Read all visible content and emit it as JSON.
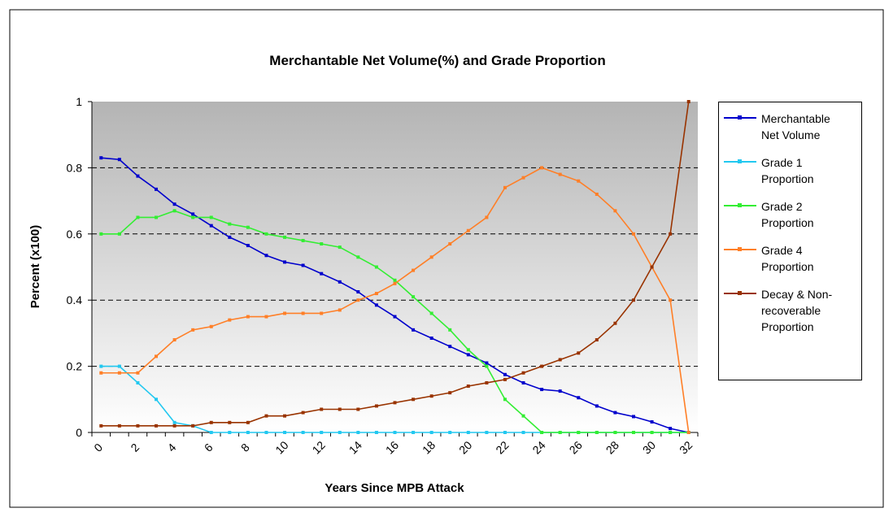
{
  "chart_data": {
    "type": "line",
    "title": "Merchantable Net Volume(%) and Grade Proportion",
    "x_label": "Years Since MPB Attack",
    "y_label": "Percent (x100)",
    "categories": [
      "0",
      null,
      "2",
      null,
      "4",
      null,
      "6",
      null,
      "8",
      null,
      "10",
      null,
      "12",
      null,
      "14",
      null,
      "16",
      null,
      "18",
      null,
      "20",
      null,
      "22",
      null,
      "24",
      null,
      "26",
      null,
      "28",
      null,
      "30",
      null,
      "32"
    ],
    "ylim": [
      0,
      1
    ],
    "yticks": [
      0,
      0.2,
      0.4,
      0.6,
      0.8,
      1
    ],
    "grid": true,
    "legend": "right",
    "series": [
      {
        "name": "Merchantable Net Volume",
        "color": "#0000cc",
        "values": [
          0.83,
          0.825,
          0.775,
          0.735,
          0.69,
          0.66,
          0.625,
          0.59,
          0.565,
          0.535,
          0.515,
          0.505,
          0.48,
          0.455,
          0.425,
          0.385,
          0.35,
          0.31,
          0.285,
          0.26,
          0.235,
          0.21,
          0.175,
          0.15,
          0.13,
          0.125,
          0.105,
          0.08,
          0.06,
          0.048,
          0.032,
          0.012,
          0
        ]
      },
      {
        "name": "Grade 1 Proportion",
        "color": "#22c8f0",
        "values": [
          0.2,
          0.2,
          0.15,
          0.1,
          0.03,
          0.02,
          0,
          0,
          0,
          0,
          0,
          0,
          0,
          0,
          0,
          0,
          0,
          0,
          0,
          0,
          0,
          0,
          0,
          0,
          0,
          0,
          0,
          0,
          0,
          0,
          0,
          0,
          0
        ]
      },
      {
        "name": "Grade 2 Proportion",
        "color": "#33ee33",
        "values": [
          0.6,
          0.6,
          0.65,
          0.65,
          0.67,
          0.65,
          0.65,
          0.63,
          0.62,
          0.6,
          0.59,
          0.58,
          0.57,
          0.56,
          0.53,
          0.5,
          0.46,
          0.41,
          0.36,
          0.31,
          0.25,
          0.2,
          0.1,
          0.05,
          0,
          0,
          0,
          0,
          0,
          0,
          0,
          0,
          0
        ]
      },
      {
        "name": "Grade 4 Proportion",
        "color": "#ff7f27",
        "values": [
          0.18,
          0.18,
          0.18,
          0.23,
          0.28,
          0.31,
          0.32,
          0.34,
          0.35,
          0.35,
          0.36,
          0.36,
          0.36,
          0.37,
          0.4,
          0.42,
          0.45,
          0.49,
          0.53,
          0.57,
          0.61,
          0.65,
          0.74,
          0.77,
          0.8,
          0.78,
          0.76,
          0.72,
          0.67,
          0.6,
          0.5,
          0.4,
          0
        ]
      },
      {
        "name": "Decay & Non-recoverable Proportion",
        "color": "#993300",
        "values": [
          0.02,
          0.02,
          0.02,
          0.02,
          0.02,
          0.02,
          0.03,
          0.03,
          0.03,
          0.05,
          0.05,
          0.06,
          0.07,
          0.07,
          0.07,
          0.08,
          0.09,
          0.1,
          0.11,
          0.12,
          0.14,
          0.15,
          0.16,
          0.18,
          0.2,
          0.22,
          0.24,
          0.28,
          0.33,
          0.4,
          0.5,
          0.6,
          1.0
        ]
      }
    ]
  }
}
